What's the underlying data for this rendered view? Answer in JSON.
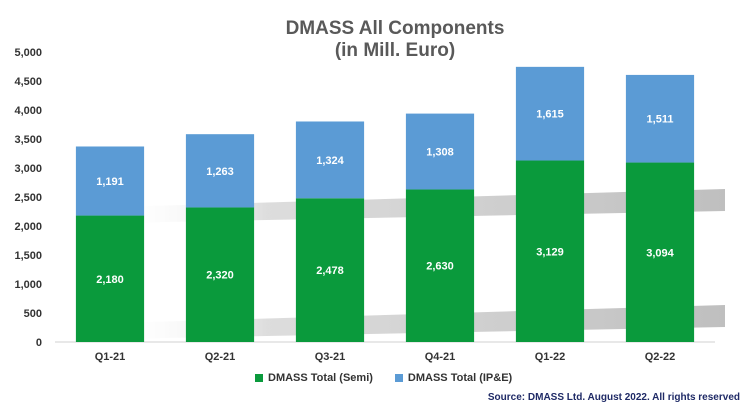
{
  "title_line1": "DMASS All Components",
  "title_line2": "(in Mill. Euro)",
  "source": "Source: DMASS Ltd. August 2022. All rights reserved",
  "chart_data": {
    "type": "bar",
    "stacked": true,
    "categories": [
      "Q1-21",
      "Q2-21",
      "Q3-21",
      "Q4-21",
      "Q1-22",
      "Q2-22"
    ],
    "series": [
      {
        "name": "DMASS Total (Semi)",
        "values": [
          2180,
          2320,
          2478,
          2630,
          3129,
          3094
        ],
        "color": "#0a9a3c"
      },
      {
        "name": "DMASS Total (IP&E)",
        "values": [
          1191,
          1263,
          1324,
          1308,
          1615,
          1511
        ],
        "color": "#5b9bd5"
      }
    ],
    "data_labels": [
      [
        "2,180",
        "2,320",
        "2,478",
        "2,630",
        "3,129",
        "3,094"
      ],
      [
        "1,191",
        "1,263",
        "1,324",
        "1,308",
        "1,615",
        "1,511"
      ]
    ],
    "ylim": [
      0,
      5000
    ],
    "yticks": [
      0,
      500,
      1000,
      1500,
      2000,
      2500,
      3000,
      3500,
      4000,
      4500,
      5000
    ],
    "ytick_labels": [
      "0",
      "500",
      "1,000",
      "1,500",
      "2,000",
      "2,500",
      "3,000",
      "3,500",
      "4,000",
      "4,500",
      "5,000"
    ],
    "legend_position": "bottom",
    "grid": false
  }
}
